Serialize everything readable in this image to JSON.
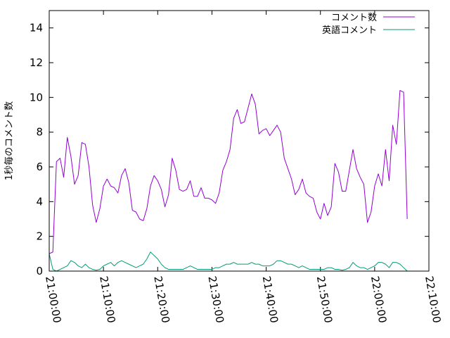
{
  "chart_data": {
    "type": "line",
    "ylabel": "1秒毎のコメント数",
    "ylim": [
      0,
      15
    ],
    "y_ticks": [
      "0",
      "2",
      "4",
      "6",
      "8",
      "10",
      "12",
      "14"
    ],
    "y_tick_values": [
      0,
      2,
      4,
      6,
      8,
      10,
      12,
      14
    ],
    "x_range": [
      "21:00:00",
      "22:10:00"
    ],
    "x_tick_labels": [
      "21:00:00",
      "21:10:00",
      "21:20:00",
      "21:30:00",
      "21:40:00",
      "21:50:00",
      "22:00:00",
      "22:10:00"
    ],
    "x_sample_interval_seconds": 40,
    "legend_position": "top-right",
    "grid": false,
    "series": [
      {
        "name": "コメント数",
        "color": "#9400d3",
        "start": "21:00:00",
        "values": [
          1.0,
          1.1,
          6.3,
          6.5,
          5.4,
          7.7,
          6.6,
          5.0,
          5.5,
          7.4,
          7.3,
          6.0,
          3.8,
          2.8,
          3.6,
          4.9,
          5.3,
          4.9,
          4.8,
          4.5,
          5.5,
          5.9,
          5.1,
          3.5,
          3.4,
          3.0,
          2.9,
          3.6,
          4.9,
          5.5,
          5.2,
          4.7,
          3.7,
          4.4,
          6.5,
          5.8,
          4.7,
          4.6,
          4.7,
          5.2,
          4.3,
          4.3,
          4.8,
          4.2,
          4.2,
          4.1,
          3.9,
          4.5,
          5.8,
          6.3,
          7.0,
          8.8,
          9.3,
          8.5,
          8.6,
          9.4,
          10.2,
          9.6,
          7.9,
          8.1,
          8.2,
          7.8,
          8.1,
          8.4,
          8.0,
          6.5,
          5.9,
          5.3,
          4.4,
          4.7,
          5.3,
          4.5,
          4.3,
          4.2,
          3.4,
          3.0,
          3.9,
          3.2,
          3.7,
          6.2,
          5.7,
          4.6,
          4.6,
          5.8,
          7.0,
          5.9,
          5.4,
          5.0,
          2.8,
          3.4,
          4.9,
          5.6,
          4.9,
          7.0,
          5.2,
          8.4,
          7.3,
          10.4,
          10.3,
          3.0
        ]
      },
      {
        "name": "英語コメント",
        "color": "#009e73",
        "start": "21:00:00",
        "values": [
          1.0,
          0.1,
          0.0,
          0.1,
          0.2,
          0.3,
          0.6,
          0.5,
          0.3,
          0.2,
          0.4,
          0.2,
          0.1,
          0.05,
          0.1,
          0.3,
          0.4,
          0.5,
          0.3,
          0.5,
          0.6,
          0.5,
          0.4,
          0.3,
          0.2,
          0.3,
          0.4,
          0.7,
          1.1,
          0.9,
          0.7,
          0.4,
          0.2,
          0.1,
          0.1,
          0.1,
          0.1,
          0.1,
          0.2,
          0.3,
          0.2,
          0.1,
          0.1,
          0.1,
          0.1,
          0.1,
          0.2,
          0.2,
          0.3,
          0.4,
          0.4,
          0.5,
          0.4,
          0.4,
          0.4,
          0.4,
          0.5,
          0.4,
          0.4,
          0.3,
          0.3,
          0.3,
          0.4,
          0.6,
          0.6,
          0.5,
          0.4,
          0.4,
          0.3,
          0.2,
          0.3,
          0.2,
          0.1,
          0.1,
          0.1,
          0.1,
          0.1,
          0.2,
          0.2,
          0.1,
          0.1,
          0.05,
          0.1,
          0.2,
          0.5,
          0.3,
          0.2,
          0.2,
          0.1,
          0.2,
          0.3,
          0.5,
          0.5,
          0.4,
          0.2,
          0.5,
          0.5,
          0.4,
          0.2,
          0.0
        ]
      }
    ]
  }
}
